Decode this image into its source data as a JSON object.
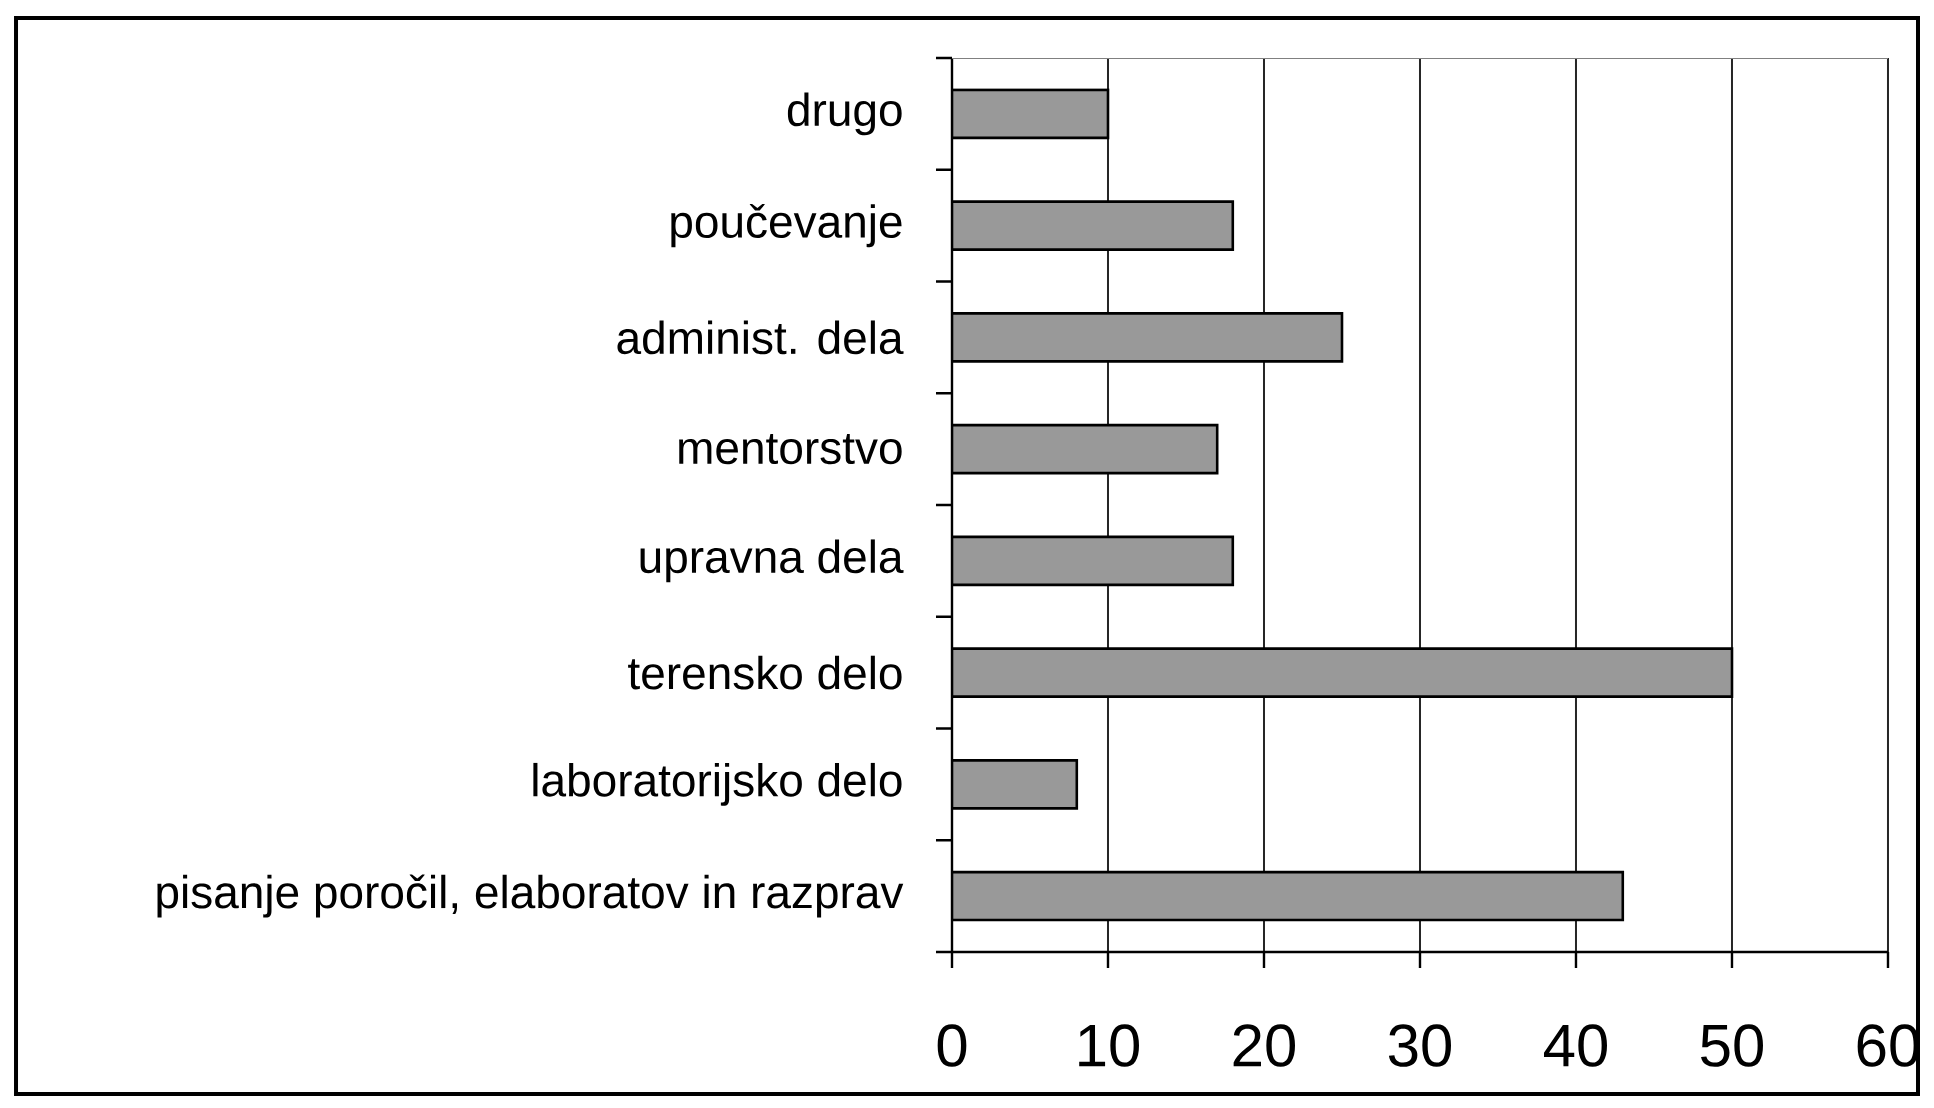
{
  "chart_data": {
    "type": "bar",
    "orientation": "horizontal",
    "categories": [
      "drugo",
      "poučevanje",
      "administ. dela",
      "mentorstvo",
      "upravna dela",
      "terensko delo",
      "laboratorijsko delo",
      "pisanje poročil, elaboratov in razprav"
    ],
    "values": [
      10,
      18,
      25,
      17,
      18,
      50,
      8,
      43
    ],
    "color": "#999999",
    "xlim": [
      0,
      60
    ],
    "xticks": [
      0,
      10,
      20,
      30,
      40,
      50,
      60
    ],
    "grid": "x"
  }
}
